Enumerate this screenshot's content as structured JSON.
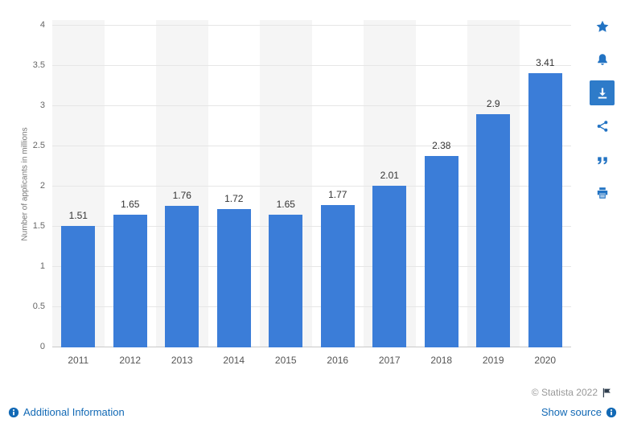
{
  "chart_data": {
    "type": "bar",
    "title": "",
    "categories": [
      "2011",
      "2012",
      "2013",
      "2014",
      "2015",
      "2016",
      "2017",
      "2018",
      "2019",
      "2020"
    ],
    "values": [
      1.51,
      1.65,
      1.76,
      1.72,
      1.65,
      1.77,
      2.01,
      2.38,
      2.9,
      3.41
    ],
    "value_labels": [
      "1.51",
      "1.65",
      "1.76",
      "1.72",
      "1.65",
      "1.77",
      "2.01",
      "2.38",
      "2.9",
      "3.41"
    ],
    "xlabel": "",
    "ylabel": "Number of applicants in millions",
    "ylim": [
      0,
      4
    ],
    "yticks": [
      0,
      0.5,
      1,
      1.5,
      2,
      2.5,
      3,
      3.5,
      4
    ],
    "ytick_labels": [
      "0",
      "0.5",
      "1",
      "1.5",
      "2",
      "2.5",
      "3",
      "3.5",
      "4"
    ],
    "grid": true,
    "legend": false,
    "bar_color": "#3b7dd8",
    "band_colors": [
      "#f5f5f5",
      "#ffffff"
    ]
  },
  "sidebar": {
    "icons": [
      {
        "name": "star-icon",
        "label": "favorite",
        "active": false
      },
      {
        "name": "bell-icon",
        "label": "notifications",
        "active": false
      },
      {
        "name": "download-icon",
        "label": "download",
        "active": true
      },
      {
        "name": "share-icon",
        "label": "share",
        "active": false
      },
      {
        "name": "quote-icon",
        "label": "cite",
        "active": false
      },
      {
        "name": "print-icon",
        "label": "print",
        "active": false
      }
    ]
  },
  "footer": {
    "copyright": "© Statista 2022",
    "additional_information": "Additional Information",
    "show_source": "Show source"
  },
  "colors": {
    "bar": "#3b7dd8",
    "link": "#1269b5",
    "icon": "#2273c3",
    "icon_active_bg": "#2e7bc9",
    "copyright_text": "#999999"
  }
}
